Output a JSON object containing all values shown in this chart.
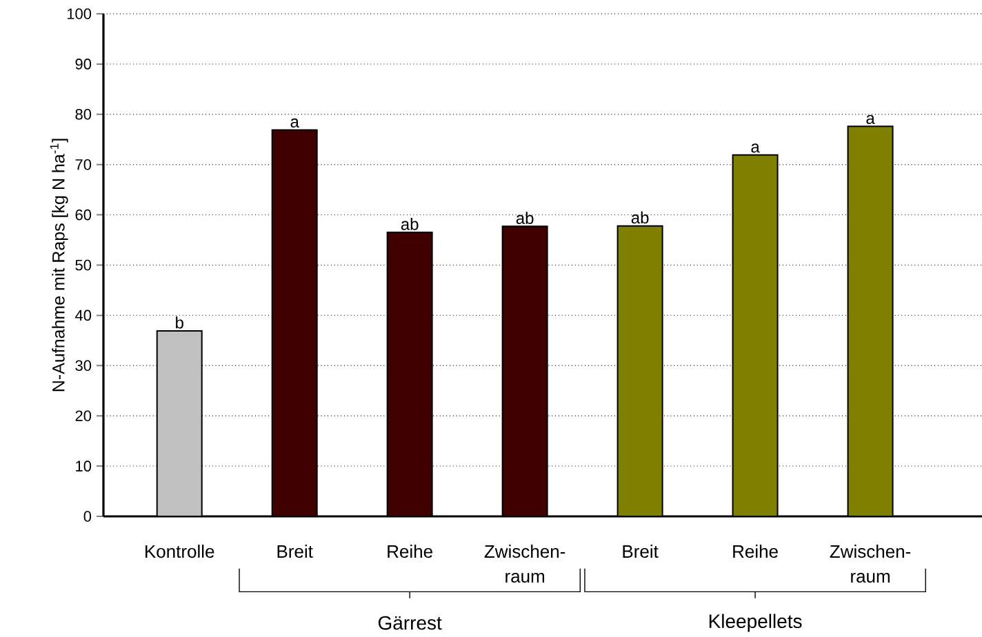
{
  "chart_data": {
    "type": "bar",
    "ylabel": "N-Aufnahme mit Raps [kg N ha$^{-1}$]",
    "categories": [
      "Kontrolle",
      "Breit",
      "Reihe",
      "Zwischen-raum",
      "Breit",
      "Reihe",
      "Zwischen-raum"
    ],
    "values": [
      36.9,
      76.9,
      56.5,
      57.7,
      57.8,
      71.9,
      77.6
    ],
    "colors": [
      "#c0c0c0",
      "#400000",
      "#400000",
      "#400000",
      "#808000",
      "#808000",
      "#808000"
    ],
    "value_labels": [
      "b",
      "a",
      "ab",
      "ab",
      "ab",
      "a",
      "a"
    ],
    "annotations": [
      "Gärrest",
      "Kleepellets"
    ],
    "ylim": [
      0,
      100
    ],
    "yticks": [
      0,
      10,
      20,
      30,
      40,
      50,
      60,
      70,
      80,
      90,
      100
    ],
    "grid": "y"
  }
}
